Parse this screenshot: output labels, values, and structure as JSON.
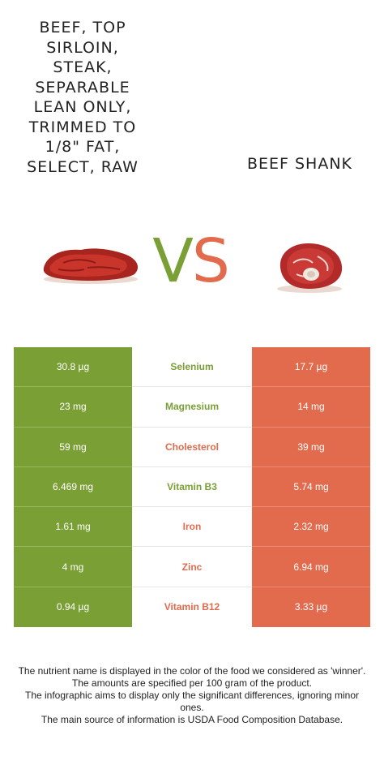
{
  "left_food": {
    "name": "BEEF, TOP SIRLOIN, STEAK, SEPARABLE LEAN ONLY, TRIMMED TO 1/8\" FAT, SELECT, RAW",
    "image": "raw-beef-steak-image"
  },
  "right_food": {
    "name": "BEEF SHANK",
    "image": "beef-shank-image"
  },
  "vs": {
    "v": "V",
    "s": "S"
  },
  "colors": {
    "left": "#7a9f35",
    "right": "#e26b4d"
  },
  "rows": [
    {
      "nutrient": "Selenium",
      "left": "30.8 µg",
      "right": "17.7 µg",
      "winner": "left"
    },
    {
      "nutrient": "Magnesium",
      "left": "23 mg",
      "right": "14 mg",
      "winner": "left"
    },
    {
      "nutrient": "Cholesterol",
      "left": "59 mg",
      "right": "39 mg",
      "winner": "right"
    },
    {
      "nutrient": "Vitamin B3",
      "left": "6.469 mg",
      "right": "5.74 mg",
      "winner": "left"
    },
    {
      "nutrient": "Iron",
      "left": "1.61 mg",
      "right": "2.32 mg",
      "winner": "right"
    },
    {
      "nutrient": "Zinc",
      "left": "4 mg",
      "right": "6.94 mg",
      "winner": "right"
    },
    {
      "nutrient": "Vitamin B12",
      "left": "0.94 µg",
      "right": "3.33 µg",
      "winner": "right"
    }
  ],
  "footer": {
    "line1": "The nutrient name is displayed in the color of the food we considered as 'winner'.",
    "line2": "The amounts are specified per 100 gram of the product.",
    "line3": "The infographic aims to display only the significant differences, ignoring minor ones.",
    "line4": "The main source of information is USDA Food Composition Database."
  }
}
